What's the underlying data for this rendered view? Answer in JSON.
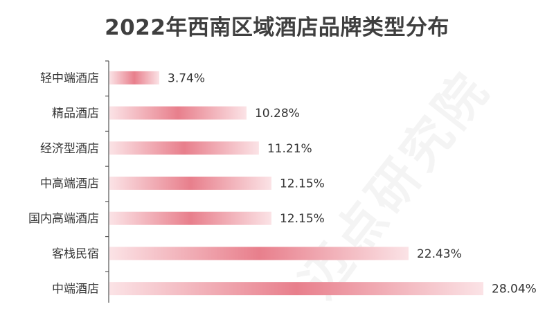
{
  "watermark": "迈点研究院",
  "colors": {
    "bar_light": "#fbe3e6",
    "bar_dark": "#e87f8c",
    "axis": "#555555"
  },
  "chart_data": {
    "type": "bar",
    "orientation": "horizontal",
    "title": "2022年西南区域酒店品牌类型分布",
    "categories": [
      "轻中端酒店",
      "精品酒店",
      "经济型酒店",
      "中高端酒店",
      "国内高端酒店",
      "客栈民宿",
      "中端酒店"
    ],
    "values": [
      3.74,
      10.28,
      11.21,
      12.15,
      12.15,
      22.43,
      28.04
    ],
    "value_labels": [
      "3.74%",
      "10.28%",
      "11.21%",
      "12.15%",
      "12.15%",
      "22.43%",
      "28.04%"
    ],
    "xlim": [
      0,
      28.04
    ],
    "grid": false,
    "legend": "none"
  }
}
